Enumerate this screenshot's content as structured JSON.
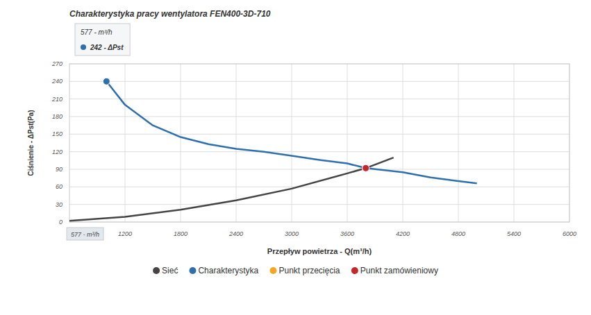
{
  "chart_data": {
    "type": "line",
    "title": "Charakterystyka pracy wentylatora FEN400-3D-710",
    "x_label": "Przepływ powietrza - Q(m³/h)",
    "y_label": "Ciśnienie - ΔPst(Pa)",
    "tooltip": {
      "x_text": "577 - m³/h",
      "y_text": "242 - ΔPst"
    },
    "crosshair_label": "577 - m³/h",
    "xlim": [
      600,
      6000
    ],
    "xticks": [
      1200,
      1800,
      2400,
      3000,
      3600,
      4200,
      4800,
      5400,
      6000
    ],
    "ylim": [
      0,
      270
    ],
    "yticks": [
      0,
      30,
      60,
      90,
      120,
      150,
      180,
      210,
      240,
      270
    ],
    "grid": true,
    "legend": "bottom",
    "series": [
      {
        "name": "Sieć",
        "color": "#444444",
        "type": "line",
        "x": [
          600,
          1200,
          1800,
          2400,
          3000,
          3600,
          3800,
          4100
        ],
        "values": [
          2,
          9,
          21,
          37,
          57,
          83,
          92,
          110
        ]
      },
      {
        "name": "Charakterystyka",
        "color": "#2f6fae",
        "type": "line",
        "x": [
          1000,
          1200,
          1500,
          1800,
          2100,
          2400,
          2700,
          3000,
          3300,
          3600,
          3800,
          4200,
          4500,
          4800,
          5000
        ],
        "values": [
          240,
          200,
          165,
          145,
          133,
          125,
          120,
          113,
          106,
          100,
          92,
          85,
          76,
          70,
          66
        ]
      },
      {
        "name": "Punkt przecięcia",
        "color": "#f5a623",
        "type": "scatter",
        "marker": "circle",
        "x": [
          3800
        ],
        "values": [
          92
        ]
      },
      {
        "name": "Punkt zamówieniowy",
        "color": "#c4262b",
        "type": "scatter",
        "marker": "circle",
        "x": [
          3800
        ],
        "values": [
          92
        ]
      }
    ],
    "highlight": {
      "x": 1000,
      "value": 240,
      "color": "#2f6fae"
    }
  }
}
